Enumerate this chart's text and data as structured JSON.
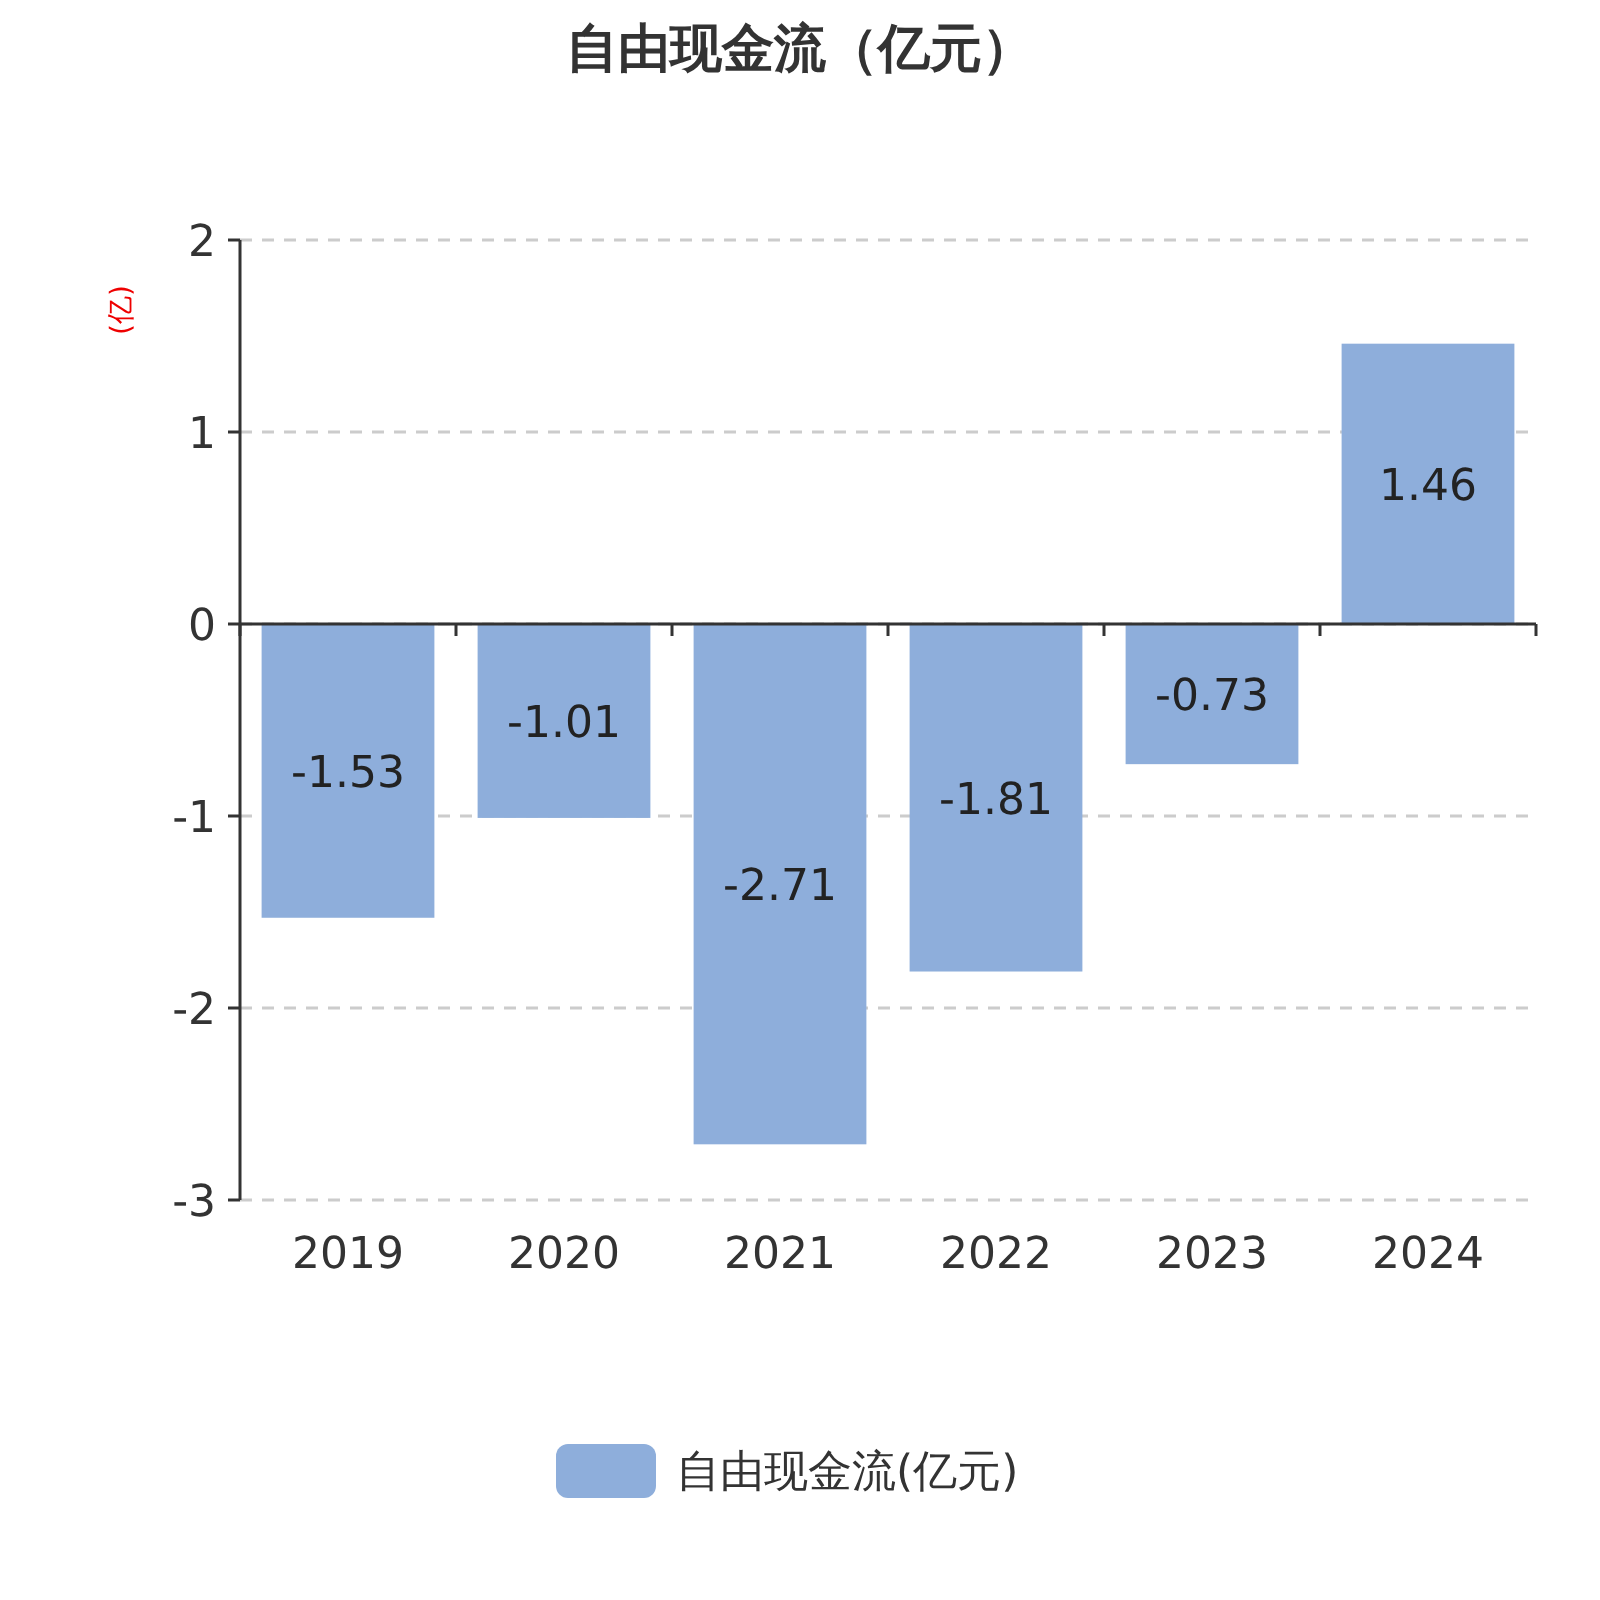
{
  "chart_data": {
    "type": "bar",
    "title": "自由现金流（亿元）",
    "ylabel": "(亿)",
    "categories": [
      "2019",
      "2020",
      "2021",
      "2022",
      "2023",
      "2024"
    ],
    "series": [
      {
        "name": "自由现金流(亿元)",
        "color": "#8eaedb",
        "values": [
          -1.53,
          -1.01,
          -2.71,
          -1.81,
          -0.73,
          1.46
        ]
      }
    ],
    "ylim": [
      -3,
      2
    ],
    "yticks": [
      -3,
      -2,
      -1,
      0,
      1,
      2
    ],
    "grid": "y",
    "legend": "bottom",
    "data_labels": true
  }
}
